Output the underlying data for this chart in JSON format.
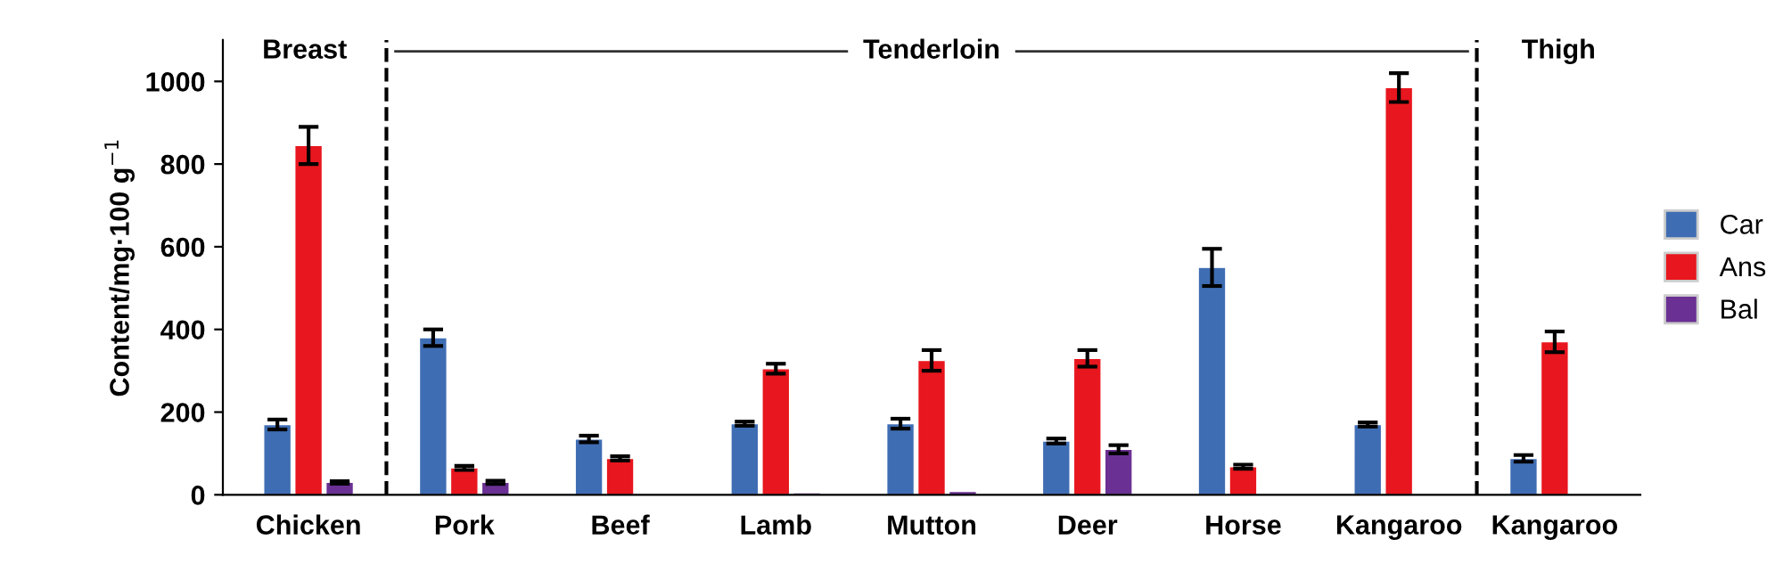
{
  "chart_data": {
    "type": "bar",
    "ylabel": "Content/mg·100 g$^{−1}$",
    "categories": [
      "Chicken",
      "Pork",
      "Beef",
      "Lamb",
      "Mutton",
      "Deer",
      "Horse",
      "Kangaroo",
      "Kangaroo"
    ],
    "series": [
      {
        "name": "Car",
        "color": "#3f6db3",
        "values": [
          170,
          380,
          135,
          172,
          172,
          130,
          550,
          170,
          88
        ],
        "errors": [
          12,
          20,
          8,
          5,
          12,
          6,
          45,
          5,
          8
        ]
      },
      {
        "name": "Ans",
        "color": "#e8161e",
        "values": [
          845,
          65,
          88,
          305,
          325,
          330,
          68,
          985,
          370
        ],
        "errors": [
          45,
          5,
          5,
          12,
          25,
          20,
          5,
          35,
          25
        ]
      },
      {
        "name": "Bal",
        "color": "#6a3093",
        "values": [
          30,
          30,
          2,
          5,
          8,
          110,
          2,
          2,
          2
        ],
        "errors": [
          3,
          4,
          null,
          null,
          null,
          10,
          null,
          null,
          null
        ]
      }
    ],
    "ylim": [
      0,
      1100
    ],
    "yticks": [
      0,
      200,
      400,
      600,
      800,
      1000
    ],
    "annotations": [
      "Breast",
      "Tenderloin",
      "Thigh"
    ],
    "legend": "right",
    "grid": false
  }
}
